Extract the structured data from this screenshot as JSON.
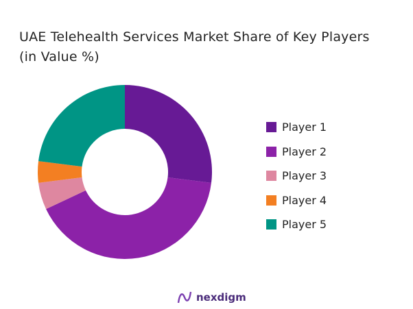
{
  "chart_data": {
    "type": "pie",
    "donut": true,
    "title_lines": [
      "UAE Telehealth Services Market Share of Key Players",
      "(in Value %)"
    ],
    "categories": [
      "Player 1",
      "Player 2",
      "Player 3",
      "Player 4",
      "Player 5"
    ],
    "values": [
      27,
      41,
      5,
      4,
      23
    ],
    "unit": "%",
    "colors": [
      "#671a95",
      "#8c22a8",
      "#de87a0",
      "#f37f22",
      "#009585"
    ],
    "legend_position": "right"
  },
  "logo": {
    "text": "nexdigm"
  }
}
